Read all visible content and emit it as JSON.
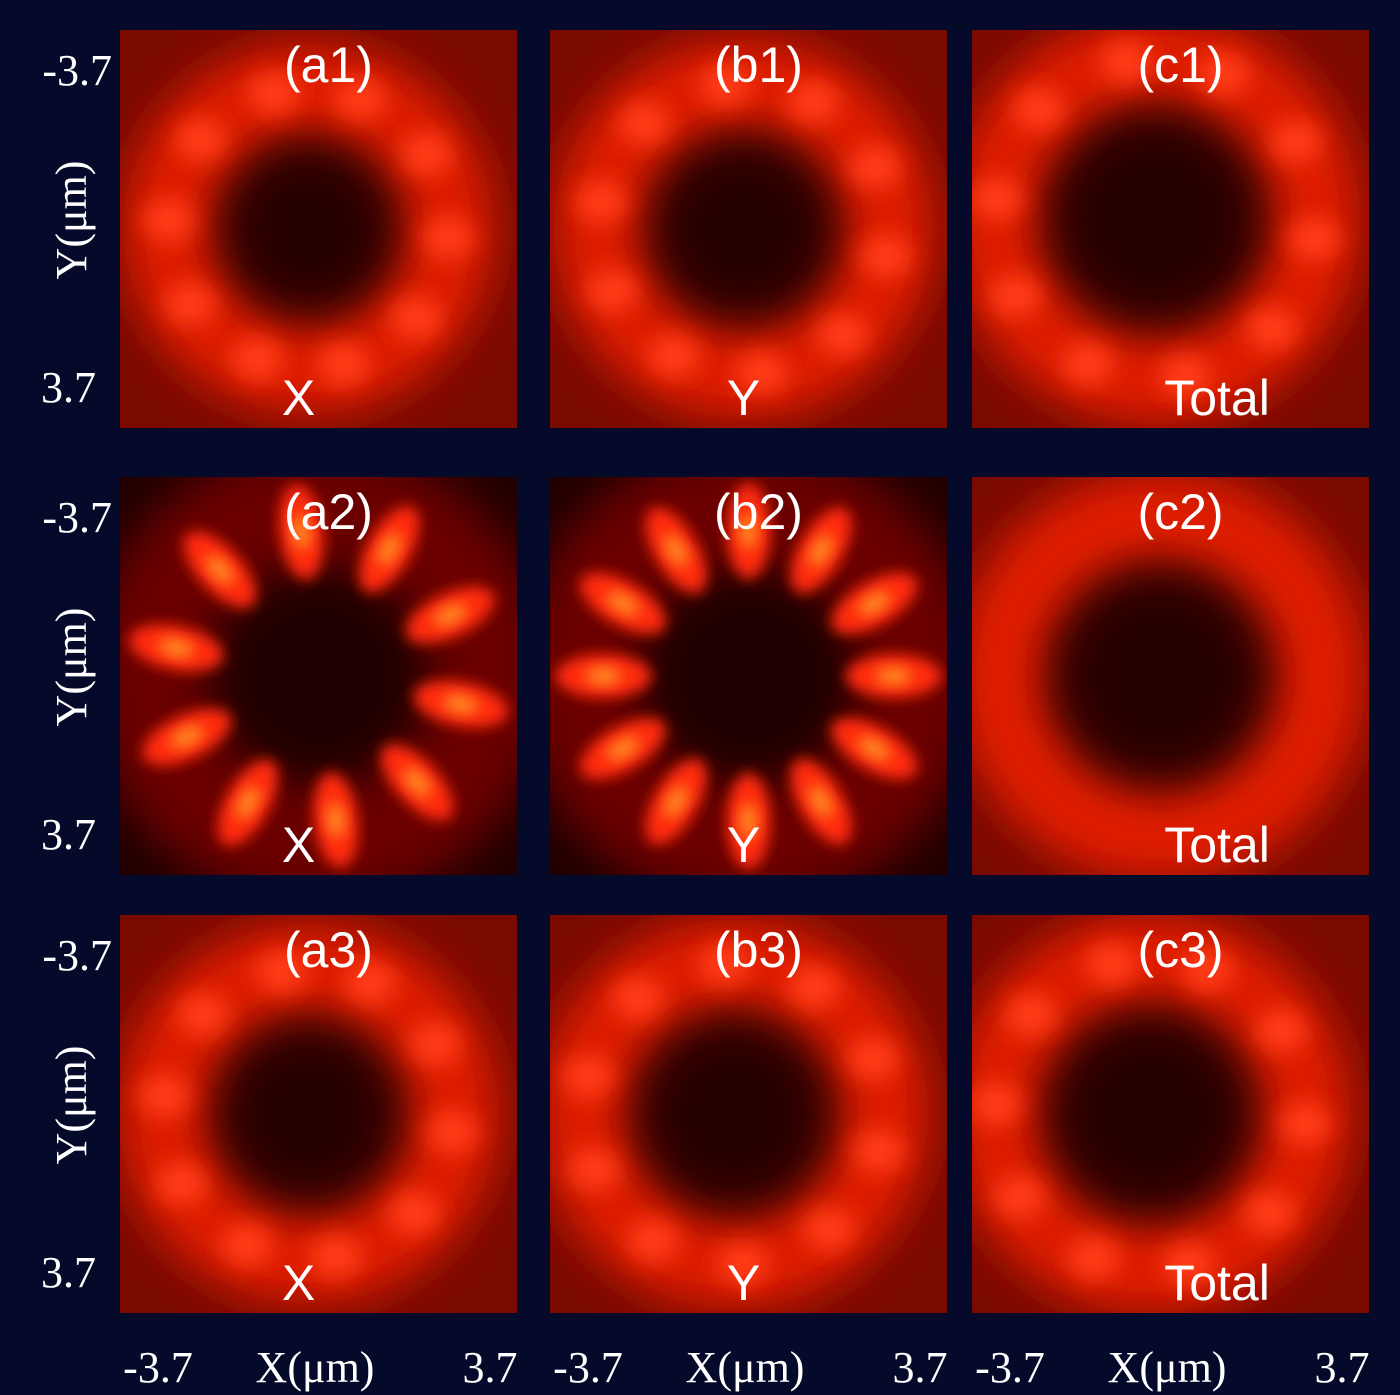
{
  "panels": [
    [
      {
        "label": "(a1)",
        "component": "X"
      },
      {
        "label": "(b1)",
        "component": "Y"
      },
      {
        "label": "(c1)",
        "component": "Total"
      }
    ],
    [
      {
        "label": "(a2)",
        "component": "X"
      },
      {
        "label": "(b2)",
        "component": "Y"
      },
      {
        "label": "(c2)",
        "component": "Total"
      }
    ],
    [
      {
        "label": "(a3)",
        "component": "X"
      },
      {
        "label": "(b3)",
        "component": "Y"
      },
      {
        "label": "(c3)",
        "component": "Total"
      }
    ]
  ],
  "rows": [
    {
      "y_label": "Y(μm)",
      "y_top": "-3.7",
      "y_bottom": "3.7"
    },
    {
      "y_label": "Y(μm)",
      "y_top": "-3.7",
      "y_bottom": "3.7"
    },
    {
      "y_label": "Y(μm)",
      "y_top": "-3.7",
      "y_bottom": "3.7"
    }
  ],
  "columns": [
    {
      "x_left": "-3.7",
      "x_label": "X(μm)",
      "x_right": "3.7"
    },
    {
      "x_left": "-3.7",
      "x_label": "X(μm)",
      "x_right": "3.7"
    },
    {
      "x_left": "-3.7",
      "x_label": "X(μm)",
      "x_right": "3.7"
    }
  ]
}
